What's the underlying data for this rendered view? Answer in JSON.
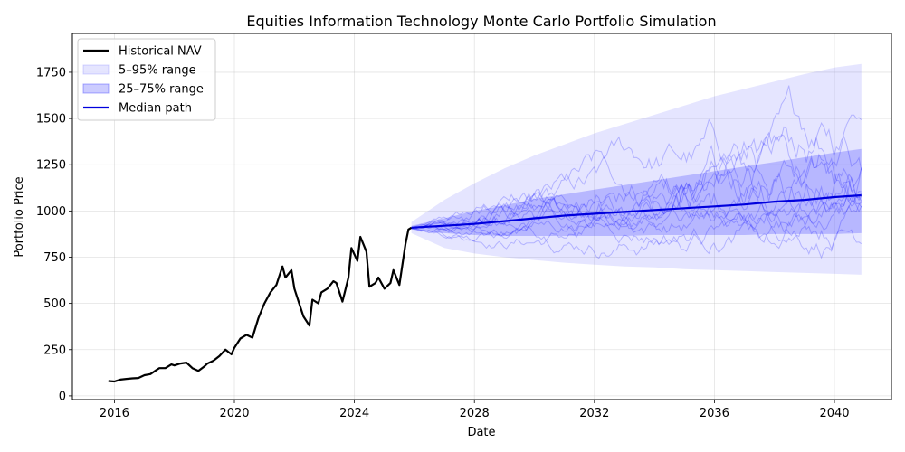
{
  "chart_data": {
    "type": "line",
    "title": "Equities Information Technology Monte Carlo Portfolio Simulation",
    "xlabel": "Date",
    "ylabel": "Portfolio Price",
    "xlim": [
      2014.6,
      2041.9
    ],
    "ylim": [
      -20,
      1960
    ],
    "x_ticks": [
      2016,
      2020,
      2024,
      2028,
      2032,
      2036,
      2040
    ],
    "x_tick_labels": [
      "2016",
      "2020",
      "2024",
      "2028",
      "2032",
      "2036",
      "2040"
    ],
    "y_ticks": [
      0,
      250,
      500,
      750,
      1000,
      1250,
      1500,
      1750
    ],
    "y_tick_labels": [
      "0",
      "250",
      "500",
      "750",
      "1000",
      "1250",
      "1500",
      "1750"
    ],
    "grid": true,
    "legend_position": "top-left",
    "colors": {
      "historical": "#000000",
      "band_outer": "#0000ff",
      "band_inner": "#0000ff",
      "median": "#0000dd",
      "sample_paths": "#0000ff"
    },
    "legend": [
      {
        "key": "historical",
        "label": "Historical NAV",
        "style": "line"
      },
      {
        "key": "band_outer",
        "label": "5–95% range",
        "style": "patch-light"
      },
      {
        "key": "band_inner",
        "label": "25–75% range",
        "style": "patch-dark"
      },
      {
        "key": "median",
        "label": "Median path",
        "style": "line"
      }
    ],
    "historical": {
      "name": "Historical NAV",
      "x": [
        2015.8,
        2016.0,
        2016.2,
        2016.4,
        2016.6,
        2016.8,
        2017.0,
        2017.2,
        2017.4,
        2017.5,
        2017.7,
        2017.9,
        2018.0,
        2018.2,
        2018.4,
        2018.6,
        2018.8,
        2019.0,
        2019.1,
        2019.3,
        2019.5,
        2019.7,
        2019.9,
        2020.0,
        2020.2,
        2020.4,
        2020.6,
        2020.8,
        2021.0,
        2021.2,
        2021.4,
        2021.6,
        2021.7,
        2021.9,
        2022.0,
        2022.2,
        2022.3,
        2022.5,
        2022.6,
        2022.8,
        2022.9,
        2023.1,
        2023.3,
        2023.4,
        2023.6,
        2023.8,
        2023.9,
        2024.1,
        2024.2,
        2024.4,
        2024.5,
        2024.7,
        2024.8,
        2025.0,
        2025.2,
        2025.3,
        2025.5,
        2025.7,
        2025.8,
        2025.9
      ],
      "y": [
        80,
        78,
        88,
        92,
        95,
        97,
        112,
        118,
        140,
        150,
        150,
        170,
        165,
        175,
        180,
        150,
        135,
        160,
        175,
        190,
        215,
        250,
        225,
        260,
        310,
        330,
        315,
        420,
        500,
        560,
        600,
        700,
        640,
        680,
        580,
        480,
        430,
        380,
        520,
        500,
        560,
        580,
        620,
        610,
        510,
        640,
        800,
        730,
        860,
        780,
        590,
        610,
        640,
        580,
        610,
        680,
        600,
        820,
        900,
        910
      ]
    },
    "forecast_x": [
      2025.9,
      2027.0,
      2028.0,
      2029.0,
      2030.0,
      2031.0,
      2032.0,
      2033.0,
      2034.0,
      2035.0,
      2036.0,
      2037.0,
      2038.0,
      2039.0,
      2040.0,
      2040.9
    ],
    "median": [
      910,
      920,
      930,
      945,
      960,
      975,
      985,
      995,
      1005,
      1015,
      1025,
      1035,
      1050,
      1060,
      1075,
      1085
    ],
    "p5": [
      880,
      800,
      770,
      750,
      735,
      720,
      710,
      700,
      695,
      685,
      680,
      675,
      670,
      665,
      660,
      655
    ],
    "p25": [
      900,
      880,
      870,
      865,
      865,
      865,
      865,
      865,
      870,
      870,
      870,
      870,
      875,
      875,
      875,
      880
    ],
    "p75": [
      920,
      960,
      1000,
      1030,
      1065,
      1090,
      1115,
      1140,
      1165,
      1190,
      1215,
      1240,
      1265,
      1290,
      1315,
      1335
    ],
    "p95": [
      940,
      1060,
      1150,
      1230,
      1300,
      1360,
      1420,
      1470,
      1520,
      1570,
      1620,
      1660,
      1700,
      1740,
      1775,
      1795
    ],
    "sample_paths_count": 12
  }
}
